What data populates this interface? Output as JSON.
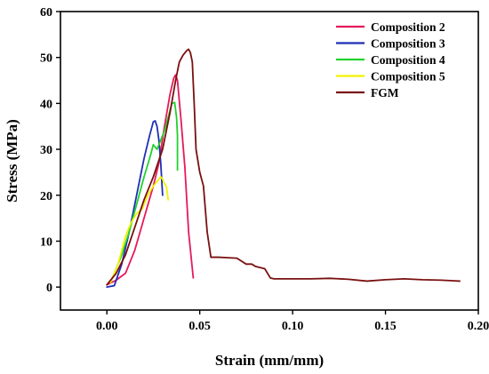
{
  "chart_data": {
    "type": "line",
    "xlabel": "Strain (mm/mm)",
    "ylabel": "Stress (MPa)",
    "xlim": [
      -0.025,
      0.2
    ],
    "ylim": [
      -5,
      60
    ],
    "xticks": [
      "0.00",
      "0.05",
      "0.10",
      "0.15",
      "0.20"
    ],
    "xtick_values": [
      0,
      0.05,
      0.1,
      0.15,
      0.2
    ],
    "yticks": [
      "0",
      "10",
      "20",
      "30",
      "40",
      "50",
      "60"
    ],
    "ytick_values": [
      0,
      10,
      20,
      30,
      40,
      50,
      60
    ],
    "grid": false,
    "legend_position": "top-right",
    "series": [
      {
        "name": "Composition 2",
        "color": "#e6195a",
        "x": [
          0.0,
          0.005,
          0.01,
          0.015,
          0.02,
          0.025,
          0.028,
          0.031,
          0.034,
          0.036,
          0.037,
          0.038,
          0.04,
          0.042,
          0.044,
          0.045,
          0.0465
        ],
        "y": [
          0.5,
          1.5,
          3.0,
          8.0,
          15.0,
          22.0,
          27.0,
          35.0,
          42.0,
          45.5,
          46.2,
          45.0,
          36.0,
          26.0,
          12.0,
          8.0,
          2.0
        ]
      },
      {
        "name": "Composition 3",
        "color": "#1f2fb5",
        "x": [
          0.0,
          0.004,
          0.008,
          0.012,
          0.016,
          0.02,
          0.023,
          0.025,
          0.026,
          0.027,
          0.028,
          0.029,
          0.03
        ],
        "y": [
          0.0,
          0.3,
          5.0,
          12.0,
          20.0,
          28.0,
          33.0,
          36.0,
          36.2,
          35.0,
          32.0,
          27.0,
          20.0
        ]
      },
      {
        "name": "Composition 4",
        "color": "#22d12f",
        "x": [
          0.003,
          0.008,
          0.012,
          0.016,
          0.02,
          0.023,
          0.025,
          0.027,
          0.029,
          0.031,
          0.033,
          0.035,
          0.0365,
          0.0375,
          0.038,
          0.038
        ],
        "y": [
          2.0,
          7.0,
          12.0,
          18.0,
          24.0,
          28.0,
          31.0,
          30.0,
          32.0,
          34.0,
          37.0,
          40.0,
          40.2,
          37.0,
          33.0,
          25.5
        ]
      },
      {
        "name": "Composition 5",
        "color": "#f2f200",
        "x": [
          0.002,
          0.006,
          0.01,
          0.013,
          0.016,
          0.019,
          0.022,
          0.025,
          0.027,
          0.028,
          0.029,
          0.03,
          0.031,
          0.032,
          0.033
        ],
        "y": [
          1.0,
          5.0,
          11.0,
          14.0,
          16.0,
          17.0,
          20.0,
          22.0,
          23.0,
          23.5,
          24.0,
          23.5,
          22.5,
          22.0,
          19.0
        ]
      },
      {
        "name": "FGM",
        "color": "#7a1010",
        "x": [
          0.0,
          0.005,
          0.01,
          0.015,
          0.02,
          0.025,
          0.03,
          0.034,
          0.037,
          0.039,
          0.041,
          0.043,
          0.044,
          0.045,
          0.046,
          0.047,
          0.048,
          0.05,
          0.052,
          0.054,
          0.056,
          0.06,
          0.07,
          0.075,
          0.078,
          0.08,
          0.085,
          0.088,
          0.09,
          0.1,
          0.11,
          0.12,
          0.13,
          0.14,
          0.15,
          0.16,
          0.17,
          0.18,
          0.19
        ],
        "y": [
          0.5,
          3.0,
          7.0,
          13.0,
          19.0,
          24.0,
          30.0,
          38.0,
          45.0,
          49.0,
          50.5,
          51.5,
          51.8,
          51.0,
          49.0,
          40.0,
          30.0,
          25.0,
          22.0,
          12.0,
          6.5,
          6.5,
          6.3,
          5.0,
          5.0,
          4.5,
          4.0,
          2.0,
          1.8,
          1.8,
          1.8,
          1.9,
          1.7,
          1.3,
          1.6,
          1.8,
          1.6,
          1.5,
          1.3
        ]
      }
    ]
  }
}
